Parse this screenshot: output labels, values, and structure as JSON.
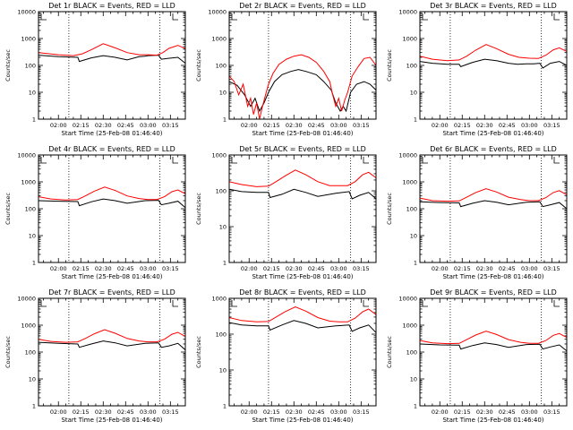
{
  "chart_data": [
    {
      "type": "line",
      "title": "Det 1r BLACK = Events, RED = LLD",
      "xlabel": "Start Time (25-Feb-08 01:46:40)",
      "ylabel": "Counts/sec",
      "xlim": [
        "01:46:40",
        "03:25:00"
      ],
      "ylim": [
        1,
        10000
      ],
      "yscale": "log",
      "x_tick_labels": [
        "02:00",
        "02:15",
        "02:30",
        "02:45",
        "03:00",
        "03:15"
      ],
      "y_tick_labels": [
        "1",
        "10",
        "100",
        "1000",
        "10000"
      ],
      "vlines": [
        "02:07",
        "03:08"
      ],
      "series": [
        {
          "color": "#000000",
          "x": [
            "01:46:40",
            "02:00",
            "02:13",
            "02:14",
            "02:22",
            "02:30",
            "02:38",
            "02:46",
            "02:54",
            "02:58",
            "03:00",
            "03:07",
            "03:09",
            "03:13",
            "03:20",
            "03:25"
          ],
          "y": [
            240,
            210,
            200,
            140,
            190,
            230,
            200,
            160,
            210,
            220,
            230,
            240,
            170,
            180,
            200,
            120
          ]
        },
        {
          "color": "#ff0000",
          "x": [
            "01:46:40",
            "02:00",
            "02:10",
            "02:16",
            "02:22",
            "02:30",
            "02:38",
            "02:46",
            "02:54",
            "03:00",
            "03:06",
            "03:10",
            "03:14",
            "03:20",
            "03:25"
          ],
          "y": [
            300,
            250,
            230,
            270,
            380,
            640,
            450,
            300,
            250,
            250,
            240,
            300,
            430,
            560,
            420
          ]
        }
      ]
    },
    {
      "type": "line",
      "title": "Det 2r BLACK = Events, RED = LLD",
      "xlabel": "Start Time (25-Feb-08 01:46:40)",
      "ylabel": "Counts/sec",
      "xlim": [
        "01:46:40",
        "03:25:00"
      ],
      "ylim": [
        1,
        10000
      ],
      "yscale": "log",
      "x_tick_labels": [
        "02:00",
        "02:15",
        "02:30",
        "02:45",
        "03:00",
        "03:15"
      ],
      "y_tick_labels": [
        "1",
        "10",
        "100",
        "1000",
        "10000"
      ],
      "vlines": [
        "02:13",
        "03:08"
      ],
      "series": [
        {
          "color": "#000000",
          "x": [
            "01:46:40",
            "01:52",
            "01:57",
            "02:01",
            "02:04",
            "02:07",
            "02:10",
            "02:13",
            "02:17",
            "02:22",
            "02:28",
            "02:33",
            "02:38",
            "02:45",
            "02:50",
            "02:55",
            "02:58",
            "03:01",
            "03:03",
            "03:05",
            "03:08",
            "03:12",
            "03:17",
            "03:21",
            "03:25"
          ],
          "y": [
            25,
            18,
            8,
            3,
            6,
            2,
            4,
            10,
            25,
            45,
            60,
            70,
            60,
            45,
            25,
            12,
            4,
            2,
            3,
            2,
            10,
            20,
            25,
            20,
            12
          ]
        },
        {
          "color": "#ff0000",
          "x": [
            "01:46:40",
            "01:50",
            "01:53",
            "01:56",
            "01:59",
            "02:01",
            "02:03",
            "02:05",
            "02:07",
            "02:09",
            "02:11",
            "02:13",
            "02:16",
            "02:20",
            "02:25",
            "02:30",
            "02:35",
            "02:40",
            "02:45",
            "02:50",
            "02:54",
            "02:56",
            "02:58",
            "03:00",
            "03:02",
            "03:04",
            "03:06",
            "03:09",
            "03:13",
            "03:17",
            "03:21",
            "03:25"
          ],
          "y": [
            40,
            25,
            8,
            20,
            3,
            6,
            1.5,
            4,
            1,
            3,
            8,
            20,
            50,
            110,
            170,
            220,
            250,
            200,
            130,
            60,
            25,
            8,
            3,
            6,
            2,
            5,
            10,
            40,
            90,
            180,
            200,
            100
          ]
        }
      ]
    },
    {
      "type": "line",
      "title": "Det 3r BLACK = Events, RED = LLD",
      "xlabel": "Start Time (25-Feb-08 01:46:40)",
      "ylabel": "Counts/sec",
      "xlim": [
        "01:46:40",
        "03:25:00"
      ],
      "ylim": [
        1,
        10000
      ],
      "yscale": "log",
      "x_tick_labels": [
        "02:00",
        "02:15",
        "02:30",
        "02:45",
        "03:00",
        "03:15"
      ],
      "y_tick_labels": [
        "1",
        "10",
        "100",
        "1000",
        "10000"
      ],
      "vlines": [
        "02:07",
        "03:08"
      ],
      "series": [
        {
          "color": "#000000",
          "x": [
            "01:46:40",
            "01:55",
            "02:05",
            "02:13",
            "02:14",
            "02:22",
            "02:30",
            "02:38",
            "02:46",
            "02:52",
            "02:58",
            "03:03",
            "03:07",
            "03:09",
            "03:14",
            "03:20",
            "03:25"
          ],
          "y": [
            140,
            120,
            110,
            110,
            90,
            130,
            170,
            150,
            120,
            110,
            115,
            115,
            120,
            80,
            120,
            140,
            100
          ]
        },
        {
          "color": "#ff0000",
          "x": [
            "01:46:40",
            "01:55",
            "02:05",
            "02:13",
            "02:18",
            "02:24",
            "02:31",
            "02:38",
            "02:46",
            "02:53",
            "03:00",
            "03:06",
            "03:11",
            "03:16",
            "03:20",
            "03:25"
          ],
          "y": [
            220,
            170,
            150,
            160,
            220,
            370,
            600,
            420,
            260,
            200,
            185,
            180,
            240,
            380,
            450,
            330
          ]
        }
      ]
    },
    {
      "type": "line",
      "title": "Det 4r BLACK = Events, RED = LLD",
      "xlabel": "Start Time (25-Feb-08 01:46:40)",
      "ylabel": "Counts/sec",
      "xlim": [
        "01:46:40",
        "03:25:00"
      ],
      "ylim": [
        1,
        10000
      ],
      "yscale": "log",
      "x_tick_labels": [
        "02:00",
        "02:15",
        "02:30",
        "02:45",
        "03:00",
        "03:15"
      ],
      "y_tick_labels": [
        "1",
        "10",
        "100",
        "1000",
        "10000"
      ],
      "vlines": [
        "02:07",
        "03:08"
      ],
      "series": [
        {
          "color": "#000000",
          "x": [
            "01:46:40",
            "02:00",
            "02:13",
            "02:14",
            "02:22",
            "02:30",
            "02:38",
            "02:46",
            "02:58",
            "03:07",
            "03:09",
            "03:14",
            "03:20",
            "03:25"
          ],
          "y": [
            200,
            190,
            185,
            130,
            180,
            230,
            200,
            160,
            200,
            205,
            140,
            160,
            190,
            110
          ]
        },
        {
          "color": "#ff0000",
          "x": [
            "01:46:40",
            "01:55",
            "02:05",
            "02:13",
            "02:18",
            "02:24",
            "02:31",
            "02:38",
            "02:46",
            "02:54",
            "03:00",
            "03:06",
            "03:11",
            "03:16",
            "03:20",
            "03:25"
          ],
          "y": [
            280,
            230,
            210,
            220,
            300,
            450,
            640,
            480,
            300,
            240,
            220,
            220,
            280,
            430,
            500,
            360
          ]
        }
      ]
    },
    {
      "type": "line",
      "title": "Det 5r BLACK = Events, RED = LLD",
      "xlabel": "Start Time (25-Feb-08 01:46:40)",
      "ylabel": "Counts/sec",
      "xlim": [
        "01:46:40",
        "03:25:00"
      ],
      "ylim": [
        1,
        1000
      ],
      "yscale": "log",
      "x_tick_labels": [
        "02:00",
        "02:15",
        "02:30",
        "02:45",
        "03:00",
        "03:15"
      ],
      "y_tick_labels": [
        "1",
        "10",
        "100",
        "1000"
      ],
      "vlines": [
        "02:13",
        "03:08"
      ],
      "series": [
        {
          "color": "#000000",
          "x": [
            "01:46:40",
            "01:55",
            "02:05",
            "02:13",
            "02:14",
            "02:22",
            "02:30",
            "02:38",
            "02:46",
            "02:58",
            "03:07",
            "03:09",
            "03:14",
            "03:20",
            "03:25"
          ],
          "y": [
            110,
            95,
            90,
            90,
            65,
            80,
            110,
            90,
            70,
            85,
            95,
            60,
            75,
            90,
            60
          ]
        },
        {
          "color": "#ff0000",
          "x": [
            "01:46:40",
            "01:55",
            "02:05",
            "02:13",
            "02:18",
            "02:24",
            "02:31",
            "02:38",
            "02:46",
            "02:54",
            "03:00",
            "03:06",
            "03:11",
            "03:16",
            "03:20",
            "03:25"
          ],
          "y": [
            180,
            150,
            130,
            135,
            180,
            260,
            380,
            280,
            180,
            140,
            140,
            140,
            180,
            280,
            330,
            230
          ]
        }
      ]
    },
    {
      "type": "line",
      "title": "Det 6r BLACK = Events, RED = LLD",
      "xlabel": "Start Time (25-Feb-08 01:46:40)",
      "ylabel": "Counts/sec",
      "xlim": [
        "01:46:40",
        "03:25:00"
      ],
      "ylim": [
        1,
        10000
      ],
      "yscale": "log",
      "x_tick_labels": [
        "02:00",
        "02:15",
        "02:30",
        "02:45",
        "03:00",
        "03:15"
      ],
      "y_tick_labels": [
        "1",
        "10",
        "100",
        "1000",
        "10000"
      ],
      "vlines": [
        "02:07",
        "03:08"
      ],
      "series": [
        {
          "color": "#000000",
          "x": [
            "01:46:40",
            "02:00",
            "02:13",
            "02:14",
            "02:22",
            "02:30",
            "02:38",
            "02:46",
            "02:58",
            "03:07",
            "03:09",
            "03:14",
            "03:20",
            "03:25"
          ],
          "y": [
            180,
            170,
            165,
            120,
            160,
            200,
            175,
            140,
            175,
            180,
            120,
            140,
            170,
            100
          ]
        },
        {
          "color": "#ff0000",
          "x": [
            "01:46:40",
            "01:55",
            "02:05",
            "02:13",
            "02:18",
            "02:24",
            "02:31",
            "02:38",
            "02:46",
            "02:54",
            "03:00",
            "03:06",
            "03:11",
            "03:16",
            "03:20",
            "03:25"
          ],
          "y": [
            250,
            200,
            190,
            195,
            270,
            400,
            560,
            420,
            270,
            220,
            200,
            200,
            260,
            400,
            470,
            330
          ]
        }
      ]
    },
    {
      "type": "line",
      "title": "Det 7r BLACK = Events, RED = LLD",
      "xlabel": "Start Time (25-Feb-08 01:46:40)",
      "ylabel": "Counts/sec",
      "xlim": [
        "01:46:40",
        "03:25:00"
      ],
      "ylim": [
        1,
        10000
      ],
      "yscale": "log",
      "x_tick_labels": [
        "02:00",
        "02:15",
        "02:30",
        "02:45",
        "03:00",
        "03:15"
      ],
      "y_tick_labels": [
        "1",
        "10",
        "100",
        "1000",
        "10000"
      ],
      "vlines": [
        "02:07",
        "03:08"
      ],
      "series": [
        {
          "color": "#000000",
          "x": [
            "01:46:40",
            "02:00",
            "02:13",
            "02:14",
            "02:22",
            "02:30",
            "02:38",
            "02:46",
            "02:58",
            "03:07",
            "03:09",
            "03:14",
            "03:20",
            "03:25"
          ],
          "y": [
            230,
            210,
            200,
            150,
            200,
            260,
            220,
            170,
            210,
            220,
            150,
            170,
            210,
            120
          ]
        },
        {
          "color": "#ff0000",
          "x": [
            "01:46:40",
            "01:55",
            "02:05",
            "02:13",
            "02:18",
            "02:24",
            "02:31",
            "02:38",
            "02:46",
            "02:54",
            "03:00",
            "03:06",
            "03:11",
            "03:16",
            "03:20",
            "03:25"
          ],
          "y": [
            300,
            250,
            230,
            240,
            320,
            480,
            680,
            500,
            320,
            260,
            240,
            240,
            300,
            460,
            540,
            380
          ]
        }
      ]
    },
    {
      "type": "line",
      "title": "Det 8r BLACK = Events, RED = LLD",
      "xlabel": "Start Time (25-Feb-08 01:46:40)",
      "ylabel": "Counts/sec",
      "xlim": [
        "01:46:40",
        "03:25:00"
      ],
      "ylim": [
        1,
        1000
      ],
      "yscale": "log",
      "x_tick_labels": [
        "02:00",
        "02:15",
        "02:30",
        "02:45",
        "03:00",
        "03:15"
      ],
      "y_tick_labels": [
        "1",
        "10",
        "100",
        "1000"
      ],
      "vlines": [
        "02:13",
        "03:08"
      ],
      "series": [
        {
          "color": "#000000",
          "x": [
            "01:46:40",
            "01:55",
            "02:05",
            "02:13",
            "02:14",
            "02:22",
            "02:30",
            "02:38",
            "02:46",
            "02:58",
            "03:07",
            "03:09",
            "03:14",
            "03:20",
            "03:25"
          ],
          "y": [
            210,
            180,
            170,
            170,
            130,
            180,
            240,
            200,
            150,
            170,
            180,
            120,
            150,
            180,
            110
          ]
        },
        {
          "color": "#ff0000",
          "x": [
            "01:46:40",
            "01:55",
            "02:05",
            "02:13",
            "02:18",
            "02:24",
            "02:31",
            "02:38",
            "02:46",
            "02:54",
            "03:00",
            "03:06",
            "03:11",
            "03:16",
            "03:20",
            "03:25"
          ],
          "y": [
            290,
            240,
            220,
            225,
            300,
            420,
            580,
            440,
            290,
            230,
            220,
            220,
            280,
            420,
            500,
            350
          ]
        }
      ]
    },
    {
      "type": "line",
      "title": "Det 9r BLACK = Events, RED = LLD",
      "xlabel": "Start Time (25-Feb-08 01:46:40)",
      "ylabel": "Counts/sec",
      "xlim": [
        "01:46:40",
        "03:25:00"
      ],
      "ylim": [
        1,
        10000
      ],
      "yscale": "log",
      "x_tick_labels": [
        "02:00",
        "02:15",
        "02:30",
        "02:45",
        "03:00",
        "03:15"
      ],
      "y_tick_labels": [
        "1",
        "10",
        "100",
        "1000",
        "10000"
      ],
      "vlines": [
        "02:07",
        "03:08"
      ],
      "series": [
        {
          "color": "#000000",
          "x": [
            "01:46:40",
            "02:00",
            "02:13",
            "02:14",
            "02:22",
            "02:30",
            "02:38",
            "02:46",
            "02:58",
            "03:07",
            "03:09",
            "03:14",
            "03:20",
            "03:25"
          ],
          "y": [
            200,
            185,
            180,
            130,
            175,
            220,
            190,
            150,
            190,
            195,
            130,
            155,
            185,
            110
          ]
        },
        {
          "color": "#ff0000",
          "x": [
            "01:46:40",
            "01:55",
            "02:05",
            "02:13",
            "02:18",
            "02:24",
            "02:31",
            "02:38",
            "02:46",
            "02:54",
            "03:00",
            "03:06",
            "03:11",
            "03:16",
            "03:20",
            "03:25"
          ],
          "y": [
            270,
            220,
            205,
            210,
            290,
            430,
            600,
            450,
            290,
            230,
            210,
            210,
            270,
            420,
            490,
            350
          ]
        }
      ]
    }
  ]
}
